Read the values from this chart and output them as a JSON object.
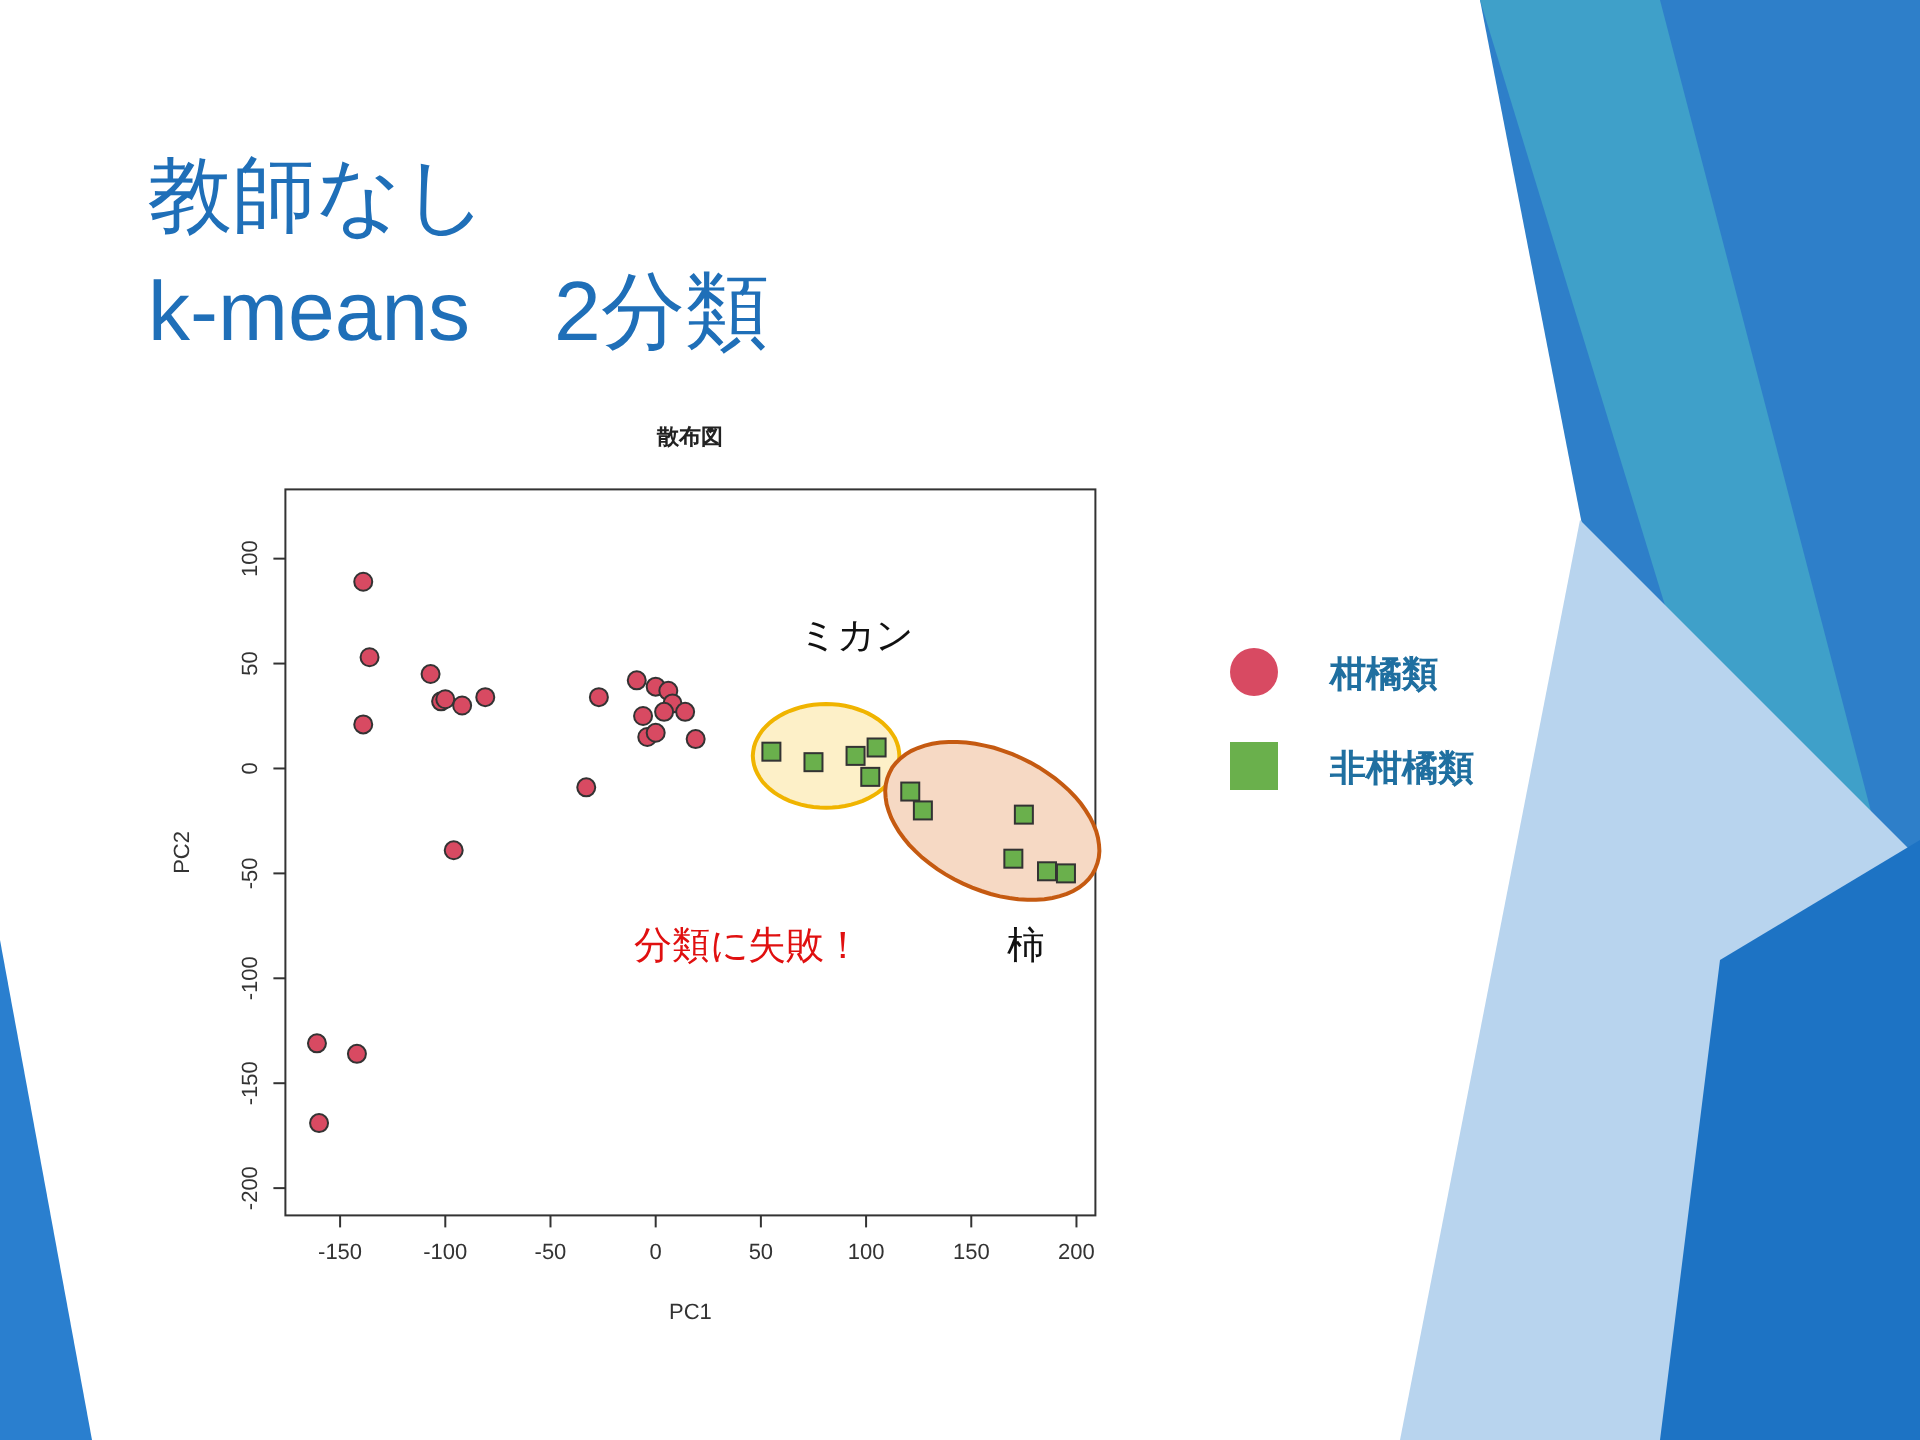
{
  "chart_data": {
    "type": "scatter",
    "title": "教師なし\nk-means　2分類",
    "subtitle": "散布図",
    "xlabel": "PC1",
    "ylabel": "PC2",
    "xlim": [
      -176,
      209
    ],
    "ylim": [
      -213,
      133
    ],
    "xticks": [
      -150,
      -100,
      -50,
      0,
      50,
      100,
      150,
      200
    ],
    "yticks": [
      -200,
      -150,
      -100,
      -50,
      0,
      50,
      100
    ],
    "legend": "right",
    "grid": false,
    "series": [
      {
        "name": "柑橘類",
        "color": "#d84a62",
        "marker": "circle",
        "x": [
          -139,
          -136,
          -139,
          -107,
          -102,
          -100,
          -92,
          -81,
          -27,
          -33,
          -96,
          -9,
          0,
          6,
          8,
          4,
          -6,
          14,
          -4,
          0,
          19,
          -161,
          -142,
          -160
        ],
        "values": [
          89,
          53,
          21,
          45,
          32,
          33,
          30,
          34,
          34,
          -9,
          -39,
          42,
          39,
          37,
          31,
          27,
          25,
          27,
          15,
          17,
          14,
          -131,
          -136,
          -169
        ]
      },
      {
        "name": "非柑橘類",
        "color": "#6ab04c",
        "marker": "square",
        "x": [
          55,
          75,
          95,
          105,
          102,
          121,
          127,
          175,
          170,
          186,
          195
        ],
        "values": [
          8,
          3,
          6,
          10,
          -4,
          -11,
          -20,
          -22,
          -43,
          -49,
          -50
        ]
      }
    ],
    "annotations": [
      "ミカン",
      "柿",
      "分類に失敗！"
    ]
  }
}
